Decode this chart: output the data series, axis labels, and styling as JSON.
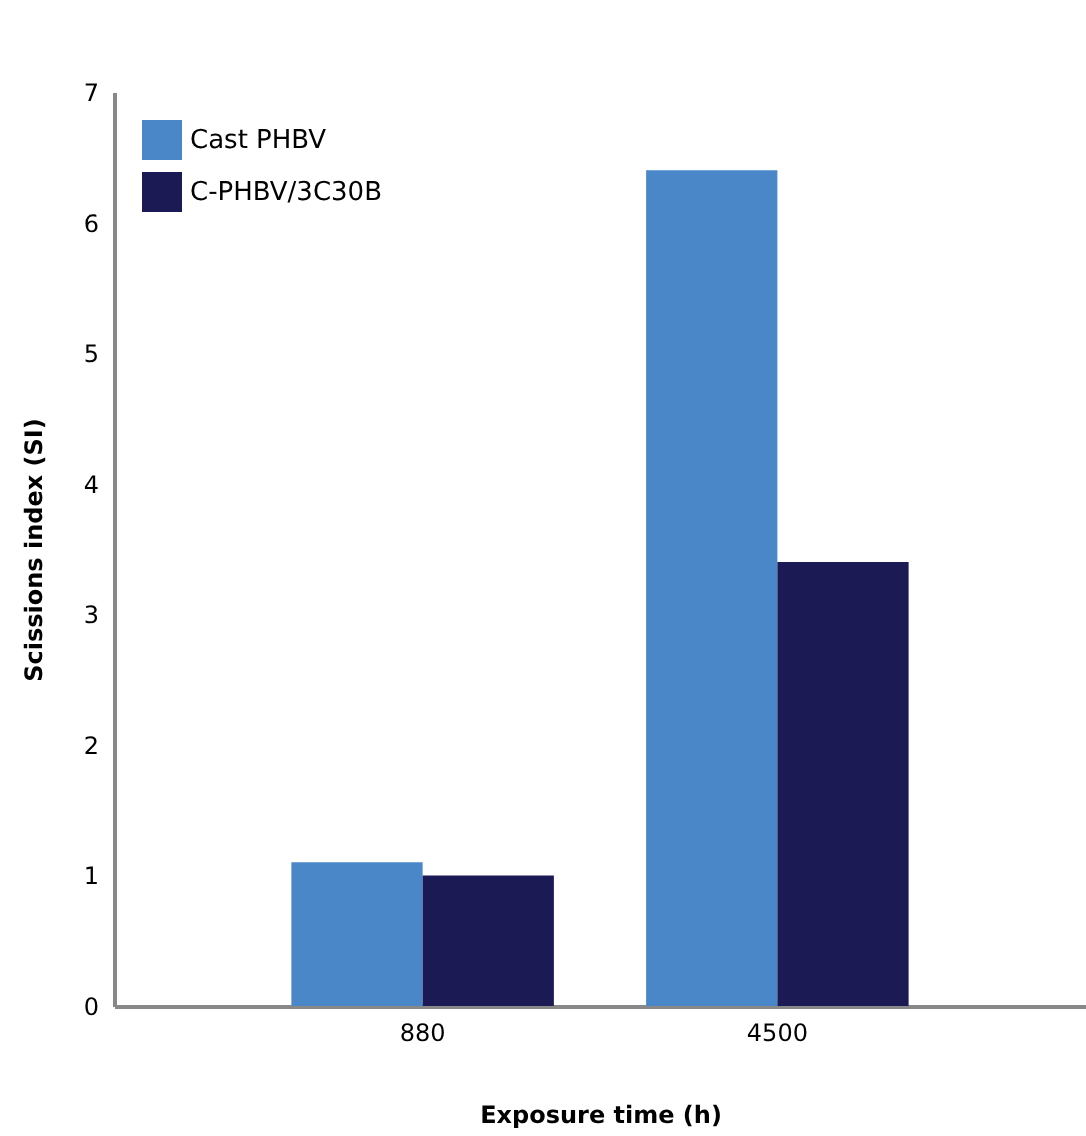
{
  "chart_data": {
    "type": "bar",
    "xlabel": "Exposure time (h)",
    "ylabel": "Scissions index (SI)",
    "categories": [
      "880",
      "4500"
    ],
    "series": [
      {
        "name": "Cast PHBV",
        "color": "#4a87c8",
        "values": [
          1.1,
          6.4
        ]
      },
      {
        "name": "C-PHBV/3C30B",
        "color": "#1c1a55",
        "values": [
          1.0,
          3.4
        ]
      }
    ],
    "ylim": [
      0,
      7
    ],
    "yticks": [
      0,
      1,
      2,
      3,
      4,
      5,
      6,
      7
    ],
    "grid": false,
    "legend": "top left"
  }
}
